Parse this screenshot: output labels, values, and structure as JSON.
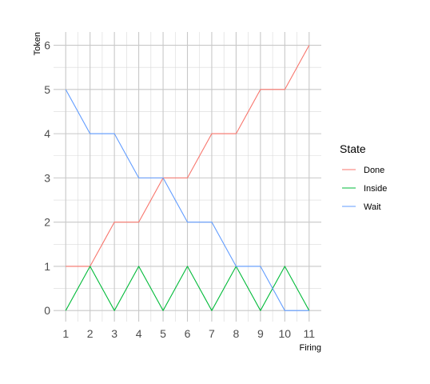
{
  "chart_data": {
    "type": "line",
    "title": "",
    "xlabel": "Firing",
    "ylabel": "Token",
    "x": [
      1,
      2,
      3,
      4,
      5,
      6,
      7,
      8,
      9,
      10,
      11
    ],
    "xlim": [
      0.5,
      11.5
    ],
    "ylim": [
      -0.25,
      6.3
    ],
    "x_ticks": [
      "1",
      "2",
      "3",
      "4",
      "5",
      "6",
      "7",
      "8",
      "9",
      "10",
      "11"
    ],
    "y_ticks": [
      "0",
      "1",
      "2",
      "3",
      "4",
      "5",
      "6"
    ],
    "grid": true,
    "legend": {
      "title": "State",
      "position": "right"
    },
    "series": [
      {
        "name": "Done",
        "color": "#F8766D",
        "points": [
          [
            1,
            1
          ],
          [
            2,
            1
          ],
          [
            3,
            2
          ],
          [
            4,
            2
          ],
          [
            5,
            3
          ],
          [
            6,
            3
          ],
          [
            7,
            4
          ],
          [
            8,
            4
          ],
          [
            9,
            5
          ],
          [
            10,
            5
          ],
          [
            11,
            6
          ]
        ]
      },
      {
        "name": "Inside",
        "color": "#00BA38",
        "points": [
          [
            1,
            0
          ],
          [
            2,
            1
          ],
          [
            3,
            0
          ],
          [
            4,
            1
          ],
          [
            5,
            0
          ],
          [
            6,
            1
          ],
          [
            7,
            0
          ],
          [
            8,
            1
          ],
          [
            9,
            0
          ],
          [
            10,
            1
          ],
          [
            11,
            0
          ]
        ]
      },
      {
        "name": "Wait",
        "color": "#619CFF",
        "points": [
          [
            1,
            5
          ],
          [
            2,
            4
          ],
          [
            3,
            4
          ],
          [
            4,
            3
          ],
          [
            5,
            3
          ],
          [
            6,
            2
          ],
          [
            7,
            2
          ],
          [
            8,
            1
          ],
          [
            9,
            1
          ],
          [
            10,
            0
          ],
          [
            11,
            0
          ]
        ]
      }
    ]
  }
}
